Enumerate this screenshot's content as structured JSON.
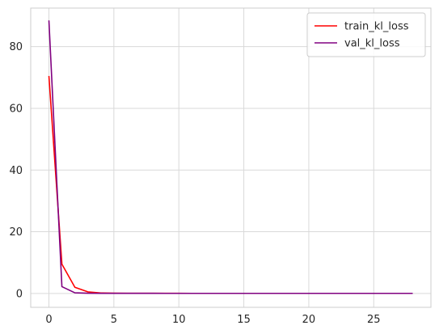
{
  "chart_data": {
    "type": "line",
    "title": "",
    "xlabel": "",
    "ylabel": "",
    "xlim": [
      -1.4,
      29.4
    ],
    "ylim": [
      -4.5,
      92.5
    ],
    "grid": true,
    "legend_position": "top-right",
    "xticks": [
      0,
      5,
      10,
      15,
      20,
      25
    ],
    "yticks": [
      0,
      20,
      40,
      60,
      80
    ],
    "series": [
      {
        "name": "train_kl_loss",
        "color": "#ff0000",
        "x": [
          0,
          1,
          2,
          3,
          4,
          5,
          6,
          7,
          8,
          9,
          10,
          11,
          12,
          13,
          14,
          15,
          16,
          17,
          18,
          19,
          20,
          21,
          22,
          23,
          24,
          25,
          26,
          27
        ],
        "y": [
          70.5,
          9.5,
          2.0,
          0.5,
          0.15,
          0.08,
          0.05,
          0.04,
          0.03,
          0.03,
          0.03,
          0.02,
          0.02,
          0.02,
          0.02,
          0.02,
          0.02,
          0.02,
          0.02,
          0.02,
          0.02,
          0.02,
          0.02,
          0.02,
          0.02,
          0.02,
          0.02,
          0.02
        ]
      },
      {
        "name": "val_kl_loss",
        "color": "#800080",
        "x": [
          0,
          1,
          2,
          3,
          4,
          5,
          6,
          7,
          8,
          9,
          10,
          11,
          12,
          13,
          14,
          15,
          16,
          17,
          18,
          19,
          20,
          21,
          22,
          23,
          24,
          25,
          26,
          27,
          28
        ],
        "y": [
          88.5,
          2.2,
          0.2,
          0.08,
          0.05,
          0.04,
          0.03,
          0.03,
          0.03,
          0.02,
          0.02,
          0.02,
          0.02,
          0.02,
          0.02,
          0.02,
          0.02,
          0.02,
          0.02,
          0.02,
          0.02,
          0.02,
          0.02,
          0.02,
          0.02,
          0.02,
          0.02,
          0.02,
          0.02
        ]
      }
    ]
  }
}
